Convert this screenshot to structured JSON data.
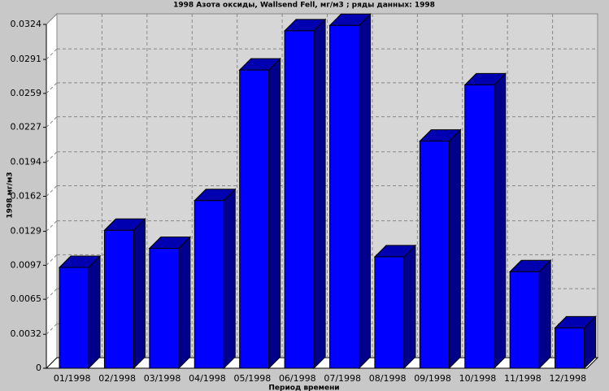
{
  "chart_data": {
    "type": "bar3d",
    "title": "1998 Азота оксиды, Wallsend Fell,  мг/м3 ; ряды данных: 1998",
    "y_label": "1998  мг/м3",
    "x_label": "Период времени",
    "categories": [
      "01/1998",
      "02/1998",
      "03/1998",
      "04/1998",
      "05/1998",
      "06/1998",
      "07/1998",
      "08/1998",
      "09/1998",
      "10/1998",
      "11/1998",
      "12/1998"
    ],
    "values": [
      0.0095,
      0.013,
      0.0113,
      0.0158,
      0.0281,
      0.0318,
      0.0323,
      0.0105,
      0.0214,
      0.0267,
      0.0091,
      0.0038
    ],
    "color": "#0000ff",
    "ylim": [
      0,
      0.0324
    ],
    "yticks": [
      0,
      0.0032,
      0.0065,
      0.0097,
      0.0129,
      0.0162,
      0.0194,
      0.0227,
      0.0259,
      0.0291,
      0.0324
    ],
    "grid": true
  }
}
